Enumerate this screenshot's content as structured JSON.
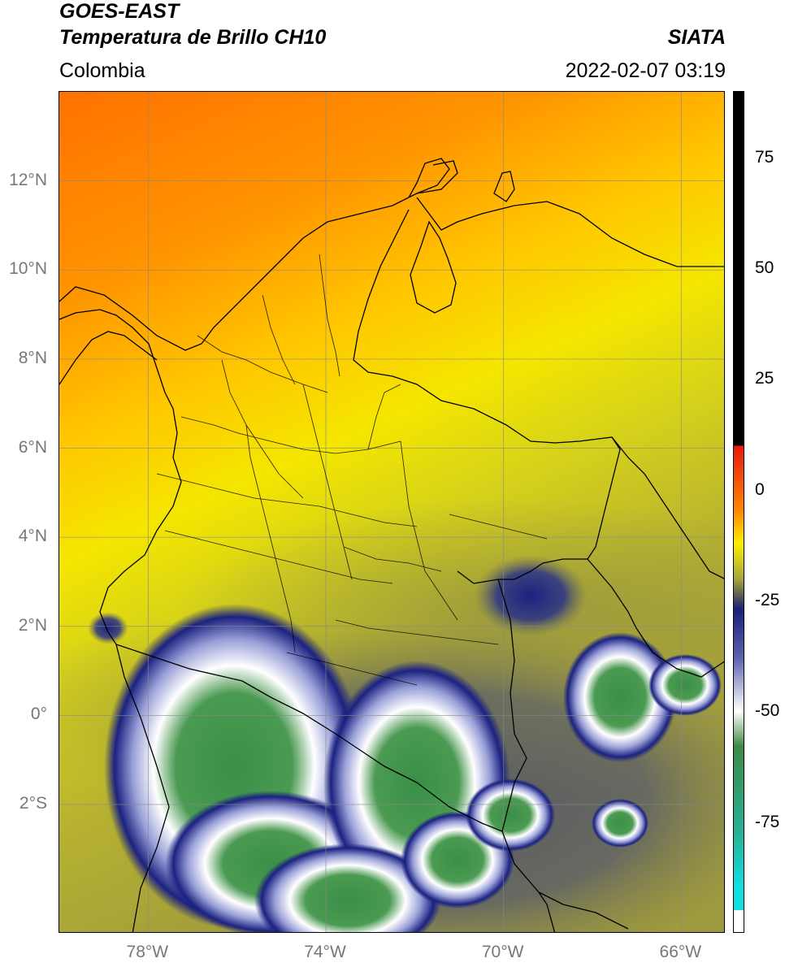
{
  "header": {
    "satellite": "GOES-EAST",
    "product": "Temperatura de Brillo CH10",
    "region": "Colombia",
    "source": "SIATA",
    "datetime": "2022-02-07 03:19"
  },
  "map": {
    "lat_labels": [
      "12°N",
      "10°N",
      "8°N",
      "6°N",
      "4°N",
      "2°N",
      "0°",
      "2°S"
    ],
    "lon_labels": [
      "78°W",
      "74°W",
      "70°W",
      "66°W"
    ],
    "lat_range": [
      -4.9,
      14.0
    ],
    "lon_range": [
      -80.0,
      -65.0
    ],
    "lat_ticks": [
      12,
      10,
      8,
      6,
      4,
      2,
      0,
      -2
    ],
    "lon_ticks": [
      -78,
      -74,
      -70,
      -66
    ],
    "gridlines": true
  },
  "colorbar": {
    "labels": [
      "75",
      "50",
      "25",
      "0",
      "-25",
      "-50",
      "-75"
    ],
    "values": [
      75,
      50,
      25,
      0,
      -25,
      -50,
      -75
    ],
    "range": [
      -100,
      90
    ],
    "colors": {
      "hot": "#000000",
      "red": "#e8170e",
      "orange": "#ff8a00",
      "yellow": "#ffee00",
      "olive": "#a7a83a",
      "navy": "#1a1f7a",
      "white": "#ffffff",
      "green": "#3e8a42",
      "teal": "#25b39a",
      "cyan": "#12e0e0"
    }
  }
}
